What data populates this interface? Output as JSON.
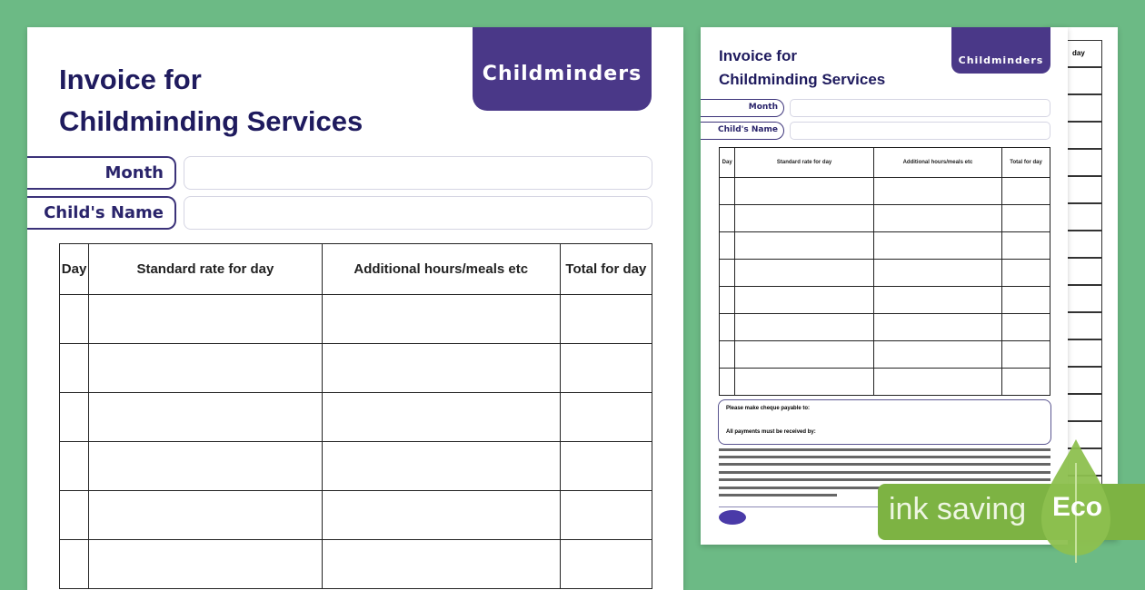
{
  "left_page": {
    "title_line1": "Invoice for",
    "title_line2": "Childminding Services",
    "brand_tab": "Childminders",
    "fields": [
      {
        "label": "Month",
        "value": ""
      },
      {
        "label": "Child's Name",
        "value": ""
      }
    ],
    "table": {
      "headers": [
        "Day",
        "Standard rate for day",
        "Additional hours/meals etc",
        "Total for day"
      ],
      "rows": 6
    }
  },
  "right_page": {
    "title_line1": "Invoice for",
    "title_line2": "Childminding Services",
    "brand_tab": "Childminders",
    "fields": [
      {
        "label": "Month",
        "value": ""
      },
      {
        "label": "Child's Name",
        "value": ""
      }
    ],
    "table": {
      "headers": [
        "Day",
        "Standard rate for day",
        "Additional hours/meals etc",
        "Total for day"
      ],
      "rows": 8
    },
    "payment_box": {
      "line1": "Please make cheque payable to:",
      "line2": "All payments must be received by:"
    }
  },
  "back_page": {
    "header": "day"
  },
  "badge": {
    "text": "ink saving",
    "eco": "Eco",
    "color": "#7db343"
  },
  "colors": {
    "background": "#6cba85",
    "brand": "#4a3888",
    "title": "#1f1b5e"
  }
}
